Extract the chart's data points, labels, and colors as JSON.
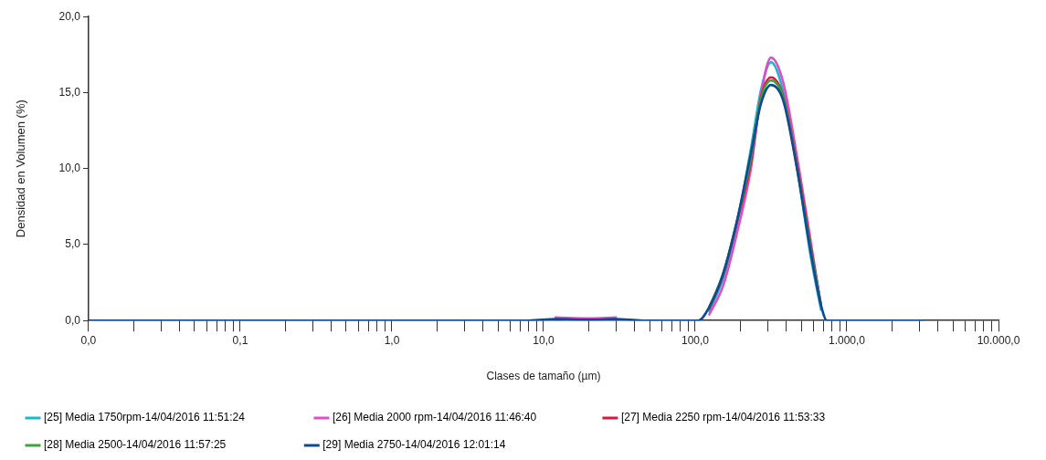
{
  "chart_data": {
    "type": "line",
    "xlabel": "Clases de tamaño (µm)",
    "ylabel": "Densidad en Volumen (%)",
    "log": "x",
    "grid": false,
    "legend": "bottom",
    "marker": "none",
    "line_style": "solid",
    "xlim": [
      0.01,
      10000
    ],
    "xticks": [
      {
        "value": 0.01,
        "label": "0,0"
      },
      {
        "value": 0.02,
        "label": null
      },
      {
        "value": 0.03,
        "label": null
      },
      {
        "value": 0.04,
        "label": null
      },
      {
        "value": 0.05,
        "label": null
      },
      {
        "value": 0.06,
        "label": null
      },
      {
        "value": 0.07,
        "label": null
      },
      {
        "value": 0.08,
        "label": null
      },
      {
        "value": 0.09,
        "label": null
      },
      {
        "value": 0.1,
        "label": "0,1"
      },
      {
        "value": 0.2,
        "label": null
      },
      {
        "value": 0.3,
        "label": null
      },
      {
        "value": 0.4,
        "label": null
      },
      {
        "value": 0.5,
        "label": null
      },
      {
        "value": 0.6,
        "label": null
      },
      {
        "value": 0.7,
        "label": null
      },
      {
        "value": 0.8,
        "label": null
      },
      {
        "value": 0.9,
        "label": null
      },
      {
        "value": 1,
        "label": "1,0"
      },
      {
        "value": 2,
        "label": null
      },
      {
        "value": 3,
        "label": null
      },
      {
        "value": 4,
        "label": null
      },
      {
        "value": 5,
        "label": null
      },
      {
        "value": 6,
        "label": null
      },
      {
        "value": 7,
        "label": null
      },
      {
        "value": 8,
        "label": null
      },
      {
        "value": 9,
        "label": null
      },
      {
        "value": 10,
        "label": "10,0"
      },
      {
        "value": 20,
        "label": null
      },
      {
        "value": 30,
        "label": null
      },
      {
        "value": 40,
        "label": null
      },
      {
        "value": 50,
        "label": null
      },
      {
        "value": 60,
        "label": null
      },
      {
        "value": 70,
        "label": null
      },
      {
        "value": 80,
        "label": null
      },
      {
        "value": 90,
        "label": null
      },
      {
        "value": 100,
        "label": "100,0"
      },
      {
        "value": 200,
        "label": null
      },
      {
        "value": 300,
        "label": null
      },
      {
        "value": 400,
        "label": null
      },
      {
        "value": 500,
        "label": null
      },
      {
        "value": 600,
        "label": null
      },
      {
        "value": 700,
        "label": null
      },
      {
        "value": 800,
        "label": null
      },
      {
        "value": 900,
        "label": null
      },
      {
        "value": 1000,
        "label": "1.000,0"
      },
      {
        "value": 2000,
        "label": null
      },
      {
        "value": 3000,
        "label": null
      },
      {
        "value": 4000,
        "label": null
      },
      {
        "value": 5000,
        "label": null
      },
      {
        "value": 6000,
        "label": null
      },
      {
        "value": 7000,
        "label": null
      },
      {
        "value": 8000,
        "label": null
      },
      {
        "value": 9000,
        "label": null
      },
      {
        "value": 10000,
        "label": "10.000,0"
      }
    ],
    "ylim": [
      0,
      20
    ],
    "yticks": [
      {
        "value": 0,
        "label": "0,0"
      },
      {
        "value": 5,
        "label": "5,0"
      },
      {
        "value": 10,
        "label": "10,0"
      },
      {
        "value": 15,
        "label": "15,0"
      },
      {
        "value": 20,
        "label": "20,0"
      }
    ],
    "x": [
      0.0105,
      1,
      8,
      12,
      20,
      30,
      45,
      60,
      100,
      105,
      124,
      153,
      188,
      233,
      272,
      316,
      380,
      469,
      578,
      676,
      740,
      1000,
      3160
    ],
    "series": [
      {
        "name": "[25] Media 1750rpm-14/04/2016 11:51:24",
        "color": "#1fb5cf",
        "values": [
          null,
          null,
          null,
          null,
          null,
          null,
          null,
          null,
          null,
          null,
          0.6,
          2.8,
          6.3,
          11.3,
          15.2,
          17,
          15.1,
          10.1,
          4.2,
          0.7,
          null,
          null,
          null
        ]
      },
      {
        "name": "[26] Media 2000 rpm-14/04/2016 11:46:40",
        "color": "#dd4fc8",
        "values": [
          null,
          null,
          null,
          0.2,
          0.15,
          0.2,
          null,
          null,
          null,
          null,
          0.4,
          2.3,
          5.7,
          10,
          14.9,
          17.3,
          15.7,
          10.8,
          5.2,
          0.9,
          null,
          null,
          null
        ]
      },
      {
        "name": "[27] Media 2250 rpm-14/04/2016 11:53:33",
        "color": "#d9163f",
        "values": [
          null,
          null,
          null,
          null,
          null,
          null,
          null,
          null,
          null,
          null,
          0.8,
          3,
          6.4,
          10.4,
          14.7,
          16,
          14.8,
          10.3,
          4.9,
          1,
          null,
          null,
          null
        ]
      },
      {
        "name": "[28] Media 2500-14/04/2016 11:57:25",
        "color": "#3fa33a",
        "values": [
          null,
          null,
          null,
          null,
          null,
          null,
          null,
          null,
          null,
          null,
          0.9,
          3.1,
          6.5,
          10.7,
          14.6,
          15.8,
          14.7,
          10.1,
          4.7,
          1,
          null,
          null,
          null
        ]
      },
      {
        "name": "[29] Media 2750-14/04/2016 12:01:14",
        "color": "#0e4a94",
        "values": [
          0,
          0,
          0,
          0.1,
          0.05,
          0.1,
          0,
          0,
          0,
          0,
          0.9,
          3.1,
          6.5,
          11,
          14.3,
          15.5,
          14.5,
          10,
          4.5,
          1,
          0,
          0,
          0
        ]
      }
    ]
  }
}
